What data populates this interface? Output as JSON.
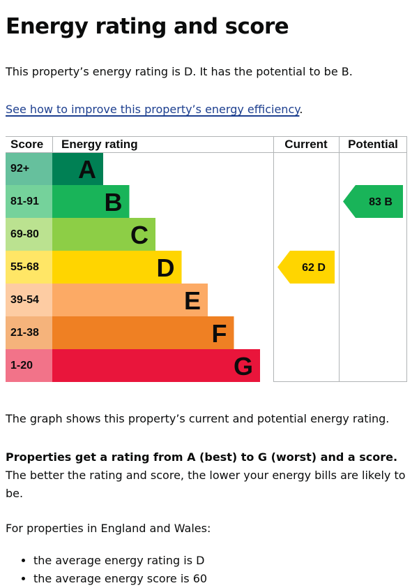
{
  "page": {
    "title": "Energy rating and score",
    "intro": "This property’s energy rating is D. It has the potential to be B.",
    "improve_link": "See how to improve this property’s energy efficiency",
    "improve_link_suffix": ".",
    "graph_caption": "The graph shows this property’s current and potential energy rating.",
    "ratings_strong": "Properties get a rating from A (best) to G (worst) and a score.",
    "ratings_rest": " The better the rating and score, the lower your energy bills are likely to be.",
    "region_intro": "For properties in England and Wales:",
    "averages": [
      "the average energy rating is D",
      "the average energy score is 60"
    ]
  },
  "chart_data": {
    "type": "table",
    "headers": {
      "score": "Score",
      "rating": "Energy rating",
      "current": "Current",
      "potential": "Potential"
    },
    "bands": [
      {
        "score": "92+",
        "rating": "A",
        "min": 92,
        "max": 100,
        "color": "#008054",
        "score_bg": "#66c09d"
      },
      {
        "score": "81-91",
        "rating": "B",
        "min": 81,
        "max": 91,
        "color": "#19b459",
        "score_bg": "#75d29b"
      },
      {
        "score": "69-80",
        "rating": "C",
        "min": 69,
        "max": 80,
        "color": "#8dce46",
        "score_bg": "#bbe290"
      },
      {
        "score": "55-68",
        "rating": "D",
        "min": 55,
        "max": 68,
        "color": "#ffd500",
        "score_bg": "#ffe666"
      },
      {
        "score": "39-54",
        "rating": "E",
        "min": 39,
        "max": 54,
        "color": "#fcaa65",
        "score_bg": "#fdcca3"
      },
      {
        "score": "21-38",
        "rating": "F",
        "min": 21,
        "max": 38,
        "color": "#ef8023",
        "score_bg": "#f5b37b"
      },
      {
        "score": "1-20",
        "rating": "G",
        "min": 1,
        "max": 20,
        "color": "#e9153b",
        "score_bg": "#f27389"
      }
    ],
    "current": {
      "score": 62,
      "rating": "D",
      "label": "62 D"
    },
    "potential": {
      "score": 83,
      "rating": "B",
      "label": "83 B"
    },
    "colors": {
      "grid": "#b1b4b6",
      "text": "#0b0c0c"
    }
  }
}
